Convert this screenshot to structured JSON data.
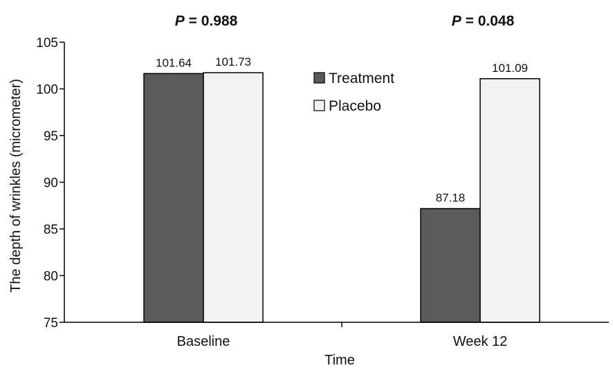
{
  "chart_data": {
    "type": "bar",
    "categories": [
      "Baseline",
      "Week 12"
    ],
    "series": [
      {
        "name": "Treatment",
        "values": [
          101.64,
          87.18
        ],
        "color": "#5a5a5a"
      },
      {
        "name": "Placebo",
        "values": [
          101.73,
          101.09
        ],
        "color": "#f2f2f2"
      }
    ],
    "data_labels": [
      [
        "101.64",
        "87.18"
      ],
      [
        "101.73",
        "101.09"
      ]
    ],
    "p_values": [
      {
        "italic": "P",
        "text": " = 0.988"
      },
      {
        "italic": "P",
        "text": " = 0.048"
      }
    ],
    "xlabel": "Time",
    "ylabel": "The depth of wrinkles (micrometer)",
    "ylim": [
      75,
      105
    ],
    "yticks": [
      75,
      80,
      85,
      90,
      95,
      100,
      105
    ],
    "grid": false,
    "legend_position": "top-center"
  }
}
